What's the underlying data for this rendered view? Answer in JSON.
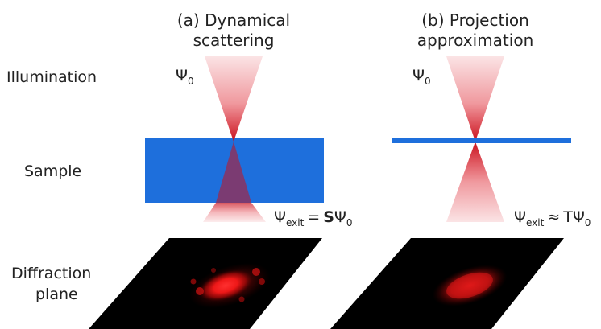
{
  "panels": [
    {
      "title_line1": "(a) Dynamical",
      "title_line2": "scattering",
      "psi_label": "Ψ",
      "psi_sub": "0",
      "exit_psi": "Ψ",
      "exit_sub": "exit",
      "exit_relation": "=",
      "operator": "S",
      "operator_bold": true,
      "rhs_psi": "Ψ",
      "rhs_sub": "0"
    },
    {
      "title_line1": "(b) Projection",
      "title_line2": "approximation",
      "psi_label": "Ψ",
      "psi_sub": "0",
      "exit_psi": "Ψ",
      "exit_sub": "exit",
      "exit_relation": "≈",
      "operator": "T",
      "operator_bold": false,
      "rhs_psi": "Ψ",
      "rhs_sub": "0"
    }
  ],
  "rows": {
    "illumination": "Illumination",
    "sample": "Sample",
    "diffraction_line1": "Diffraction",
    "diffraction_line2": "plane"
  },
  "colors": {
    "sample_blue": "#1e6fdc",
    "beam_red": "#dd1c28",
    "plane_black": "#000000",
    "text": "#222222"
  }
}
